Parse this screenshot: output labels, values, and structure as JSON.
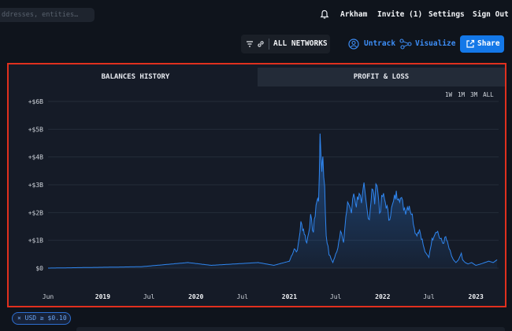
{
  "header": {
    "search_placeholder": "ddresses, entities…",
    "nav": [
      "Arkham",
      "Invite (1)",
      "Settings",
      "Sign Out"
    ]
  },
  "toolbar": {
    "network_label": "ALL NETWORKS",
    "untrack_label": "Untrack",
    "visualize_label": "Visualize",
    "share_label": "Share"
  },
  "tabs": [
    "BALANCES HISTORY",
    "PROFIT & LOSS"
  ],
  "time_ranges": [
    "1W",
    "1M",
    "3M",
    "ALL"
  ],
  "filter": {
    "chip_label": "USD ≥ $0.10"
  },
  "colors": {
    "accent": "#1478e8",
    "line": "#2f86f0",
    "highlight": "#e0301e"
  },
  "icons": [
    "bell-icon",
    "filter-icon",
    "link-icon",
    "untrack-icon",
    "visualize-icon",
    "share-icon",
    "close-icon"
  ],
  "chart_data": {
    "type": "area",
    "title": "",
    "xlabel": "",
    "ylabel": "",
    "x_range": [
      "2018-06-01",
      "2023-03-31"
    ],
    "ylim": [
      0,
      6
    ],
    "y_unit": "B USD",
    "y_ticks": [
      "$0",
      "+$1B",
      "+$2B",
      "+$3B",
      "+$4B",
      "+$5B",
      "+$6B"
    ],
    "x_ticks": [
      {
        "label": "Jun",
        "date": "2018-06-01",
        "year": false
      },
      {
        "label": "2019",
        "date": "2019-01-01",
        "year": true
      },
      {
        "label": "Jul",
        "date": "2019-07-01",
        "year": false
      },
      {
        "label": "2020",
        "date": "2020-01-01",
        "year": true
      },
      {
        "label": "Jul",
        "date": "2020-07-01",
        "year": false
      },
      {
        "label": "2021",
        "date": "2021-01-01",
        "year": true
      },
      {
        "label": "Jul",
        "date": "2021-07-01",
        "year": false
      },
      {
        "label": "2022",
        "date": "2022-01-01",
        "year": true
      },
      {
        "label": "Jul",
        "date": "2022-07-01",
        "year": false
      },
      {
        "label": "2023",
        "date": "2023-01-01",
        "year": true
      }
    ],
    "grid": true,
    "series": [
      {
        "x": [
          "2018-06-01",
          "2019-06-01",
          "2019-12-01",
          "2020-03-01",
          "2020-06-01",
          "2020-09-01",
          "2020-11-01",
          "2021-01-01",
          "2021-01-20",
          "2021-02-01",
          "2021-02-15",
          "2021-02-25",
          "2021-03-10",
          "2021-03-25",
          "2021-04-05",
          "2021-04-15",
          "2021-04-25",
          "2021-05-01",
          "2021-05-08",
          "2021-05-12",
          "2021-05-19",
          "2021-05-25",
          "2021-06-05",
          "2021-06-20",
          "2021-07-01",
          "2021-07-10",
          "2021-07-20",
          "2021-08-01",
          "2021-08-10",
          "2021-08-20",
          "2021-09-01",
          "2021-09-10",
          "2021-09-20",
          "2021-10-01",
          "2021-10-10",
          "2021-10-20",
          "2021-11-01",
          "2021-11-10",
          "2021-11-20",
          "2021-12-01",
          "2021-12-10",
          "2021-12-20",
          "2022-01-01",
          "2022-01-15",
          "2022-01-25",
          "2022-02-05",
          "2022-02-20",
          "2022-03-05",
          "2022-03-20",
          "2022-04-01",
          "2022-04-15",
          "2022-05-01",
          "2022-05-12",
          "2022-05-25",
          "2022-06-05",
          "2022-06-12",
          "2022-06-20",
          "2022-07-01",
          "2022-07-10",
          "2022-07-20",
          "2022-08-01",
          "2022-08-12",
          "2022-08-25",
          "2022-09-05",
          "2022-09-15",
          "2022-09-25",
          "2022-10-05",
          "2022-10-15",
          "2022-10-25",
          "2022-11-05",
          "2022-11-10",
          "2022-11-20",
          "2022-12-01",
          "2022-12-15",
          "2023-01-01",
          "2023-01-20",
          "2023-02-05",
          "2023-02-20",
          "2023-03-10",
          "2023-03-25"
        ],
        "y": [
          0,
          0.05,
          0.2,
          0.1,
          0.15,
          0.2,
          0.1,
          0.25,
          0.7,
          0.6,
          1.6,
          1.4,
          0.9,
          1.8,
          1.3,
          2.3,
          2.5,
          4.6,
          3.6,
          4.1,
          2.8,
          1.2,
          0.5,
          0.2,
          0.5,
          0.7,
          1.4,
          1.0,
          1.8,
          2.4,
          2.0,
          2.7,
          2.3,
          2.8,
          2.2,
          2.9,
          2.1,
          1.8,
          2.9,
          2.4,
          3.2,
          2.0,
          2.6,
          2.3,
          1.8,
          2.1,
          2.6,
          2.7,
          2.3,
          2.1,
          2.3,
          1.7,
          1.2,
          1.4,
          1.0,
          0.7,
          0.5,
          0.4,
          0.9,
          1.2,
          1.4,
          1.1,
          0.9,
          1.1,
          0.8,
          0.5,
          0.3,
          0.2,
          0.3,
          0.5,
          0.3,
          0.2,
          0.15,
          0.2,
          0.1,
          0.15,
          0.2,
          0.25,
          0.2,
          0.3
        ]
      }
    ]
  }
}
